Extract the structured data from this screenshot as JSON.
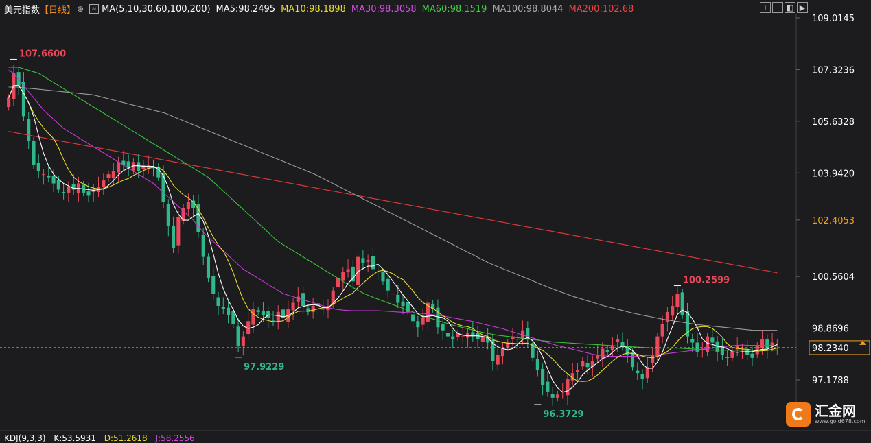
{
  "header": {
    "symbol": "美元指数",
    "period": "【日线】",
    "ma_def": "MA(5,10,30,60,100,200)",
    "ma5": "MA5:98.2495",
    "ma10": "MA10:98.1898",
    "ma30": "MA30:98.3058",
    "ma60": "MA60:98.1519",
    "ma100": "MA100:98.8044",
    "ma200": "MA200:102.68"
  },
  "toolbar": [
    "+",
    "−",
    "◧",
    "▶"
  ],
  "kdj": {
    "label": "KDJ(9,3,3)",
    "k": "K:53.5931",
    "d": "D:51.2618",
    "j": "J:58.2556"
  },
  "logo": {
    "name": "汇金网",
    "url": "www.gold678.com"
  },
  "colors": {
    "up": "#e8485a",
    "down": "#2fb98b",
    "ma5": "#ffffff",
    "ma10": "#e7dc32",
    "ma30": "#c43bd1",
    "ma60": "#37c43a",
    "ma100": "#9c9c9c",
    "ma200": "#e23a3a",
    "axis_text": "#ffffff",
    "current": "#f0a020"
  },
  "chart_data": {
    "type": "candlestick",
    "y_ticks": [
      "109.0145",
      "107.3236",
      "105.6328",
      "103.9420",
      "102.4053",
      "100.5604",
      "98.8696",
      "97.1788"
    ],
    "y_range": [
      96.0,
      109.6
    ],
    "current_price": "98.2340",
    "highlight_price": "102.4053",
    "annotations": [
      {
        "label": "107.6600",
        "value": 107.66,
        "index": 1
      },
      {
        "label": "97.9229",
        "value": 97.9229,
        "index": 46
      },
      {
        "label": "96.3729",
        "value": 96.3729,
        "index": 106
      },
      {
        "label": "100.2599",
        "value": 100.2599,
        "index": 134
      }
    ],
    "closes": [
      106.4,
      107.2,
      106.8,
      105.8,
      105.0,
      104.2,
      104.0,
      103.9,
      103.8,
      103.6,
      103.4,
      103.3,
      103.5,
      103.4,
      103.6,
      103.3,
      103.2,
      103.4,
      103.5,
      103.7,
      103.9,
      104.0,
      104.3,
      104.2,
      104.1,
      104.3,
      104.0,
      104.2,
      104.2,
      104.1,
      103.8,
      103.0,
      102.2,
      101.5,
      102.5,
      102.8,
      103.0,
      102.8,
      102.0,
      101.2,
      100.5,
      100.0,
      99.6,
      99.5,
      99.3,
      99.0,
      98.3,
      98.6,
      99.1,
      99.5,
      99.4,
      99.3,
      99.2,
      99.1,
      99.4,
      99.2,
      99.5,
      99.7,
      99.9,
      99.6,
      99.4,
      99.6,
      99.6,
      99.5,
      99.6,
      100.1,
      100.5,
      100.7,
      100.8,
      100.4,
      101.2,
      101.0,
      101.1,
      100.8,
      100.7,
      100.4,
      100.1,
      100.0,
      99.7,
      99.6,
      99.4,
      99.1,
      98.9,
      99.2,
      99.7,
      99.5,
      98.9,
      98.8,
      98.6,
      98.5,
      98.7,
      98.6,
      98.7,
      98.6,
      98.5,
      98.6,
      98.4,
      97.8,
      98.0,
      98.2,
      98.4,
      98.6,
      98.5,
      98.8,
      98.5,
      97.9,
      97.5,
      97.0,
      96.8,
      96.6,
      96.7,
      96.8,
      97.2,
      97.4,
      97.5,
      97.8,
      97.6,
      97.8,
      98.0,
      98.2,
      98.1,
      98.3,
      98.5,
      98.3,
      98.0,
      97.6,
      97.4,
      97.2,
      97.6,
      98.0,
      98.6,
      99.0,
      99.4,
      99.6,
      100.0,
      99.3,
      98.6,
      98.4,
      98.1,
      98.2,
      98.6,
      98.4,
      98.1,
      98.0,
      97.9,
      98.1,
      98.3,
      98.2,
      98.0,
      97.9,
      98.3,
      98.5,
      98.2,
      98.4,
      98.3
    ],
    "ma30": [
      107.3,
      107.2,
      107.0,
      106.8,
      106.6,
      106.4,
      106.2,
      106.0,
      105.85,
      105.7,
      105.55,
      105.4,
      105.3,
      105.2,
      105.1,
      105.0,
      104.9,
      104.8,
      104.7,
      104.6,
      104.5,
      104.4,
      104.3,
      104.2,
      104.1,
      104.0,
      103.9,
      103.8,
      103.7,
      103.6,
      103.45,
      103.3,
      103.15,
      103.0,
      102.85,
      102.7,
      102.55,
      102.4,
      102.2,
      102.0,
      101.85,
      101.7,
      101.55,
      101.4,
      101.25,
      101.1,
      100.95,
      100.8,
      100.7,
      100.6,
      100.5,
      100.4,
      100.3,
      100.2,
      100.1,
      100.0,
      99.95,
      99.9,
      99.85,
      99.8,
      99.75,
      99.7,
      99.65,
      99.6,
      99.55,
      99.5,
      99.48,
      99.46,
      99.45,
      99.44,
      99.44,
      99.44,
      99.44,
      99.44,
      99.44,
      99.43,
      99.42,
      99.41,
      99.4,
      99.39,
      99.38,
      99.37,
      99.36,
      99.35,
      99.33,
      99.31,
      99.29,
      99.27,
      99.24,
      99.21,
      99.18,
      99.15,
      99.12,
      99.09,
      99.05,
      99.01,
      98.97,
      98.93,
      98.89,
      98.85,
      98.8,
      98.75,
      98.7,
      98.65,
      98.6,
      98.55,
      98.5,
      98.45,
      98.4,
      98.35,
      98.3,
      98.26,
      98.22,
      98.18,
      98.14,
      98.1,
      98.06,
      98.02,
      97.99,
      97.97,
      97.96,
      97.95,
      97.95,
      97.95,
      97.95,
      97.95,
      97.96,
      97.97,
      97.98,
      97.99,
      98.0,
      98.02,
      98.04,
      98.06,
      98.08,
      98.1,
      98.12,
      98.14,
      98.16,
      98.18,
      98.2,
      98.22,
      98.24,
      98.26,
      98.28,
      98.3,
      98.31,
      98.32,
      98.31,
      98.31,
      98.31,
      98.31,
      98.31,
      98.31,
      98.31
    ],
    "ma60": [
      107.4,
      107.4,
      107.4,
      107.35,
      107.3,
      107.25,
      107.2,
      107.1,
      107.0,
      106.9,
      106.8,
      106.7,
      106.6,
      106.5,
      106.4,
      106.3,
      106.2,
      106.1,
      106.0,
      105.9,
      105.8,
      105.7,
      105.6,
      105.5,
      105.4,
      105.3,
      105.2,
      105.1,
      105.0,
      104.9,
      104.8,
      104.7,
      104.6,
      104.5,
      104.4,
      104.3,
      104.2,
      104.1,
      104.0,
      103.9,
      103.8,
      103.65,
      103.5,
      103.35,
      103.2,
      103.05,
      102.9,
      102.75,
      102.6,
      102.45,
      102.3,
      102.15,
      102.0,
      101.85,
      101.7,
      101.6,
      101.5,
      101.4,
      101.3,
      101.2,
      101.1,
      101.0,
      100.9,
      100.8,
      100.7,
      100.6,
      100.5,
      100.4,
      100.3,
      100.2,
      100.1,
      100.02,
      99.95,
      99.88,
      99.82,
      99.76,
      99.7,
      99.64,
      99.58,
      99.52,
      99.46,
      99.4,
      99.34,
      99.28,
      99.22,
      99.17,
      99.12,
      99.07,
      99.02,
      98.97,
      98.93,
      98.89,
      98.85,
      98.81,
      98.77,
      98.73,
      98.7,
      98.67,
      98.64,
      98.62,
      98.6,
      98.58,
      98.56,
      98.54,
      98.52,
      98.5,
      98.48,
      98.46,
      98.44,
      98.42,
      98.41,
      98.4,
      98.39,
      98.38,
      98.37,
      98.36,
      98.35,
      98.34,
      98.33,
      98.32,
      98.31,
      98.3,
      98.29,
      98.28,
      98.27,
      98.26,
      98.25,
      98.24,
      98.23,
      98.22,
      98.22,
      98.22,
      98.22,
      98.22,
      98.22,
      98.21,
      98.2,
      98.19,
      98.18,
      98.17,
      98.16,
      98.15,
      98.15,
      98.15,
      98.15,
      98.15,
      98.15,
      98.15,
      98.15,
      98.15,
      98.15,
      98.15,
      98.15,
      98.15,
      98.15
    ],
    "ma100": [
      106.75,
      106.75,
      106.75,
      106.72,
      106.7,
      106.68,
      106.66,
      106.64,
      106.62,
      106.6,
      106.58,
      106.56,
      106.54,
      106.52,
      106.5,
      106.45,
      106.4,
      106.35,
      106.3,
      106.25,
      106.2,
      106.15,
      106.1,
      106.05,
      106.0,
      105.95,
      105.9,
      105.82,
      105.74,
      105.66,
      105.58,
      105.5,
      105.42,
      105.34,
      105.26,
      105.18,
      105.1,
      105.02,
      104.94,
      104.86,
      104.78,
      104.7,
      104.62,
      104.54,
      104.46,
      104.38,
      104.3,
      104.22,
      104.14,
      104.06,
      103.98,
      103.9,
      103.8,
      103.7,
      103.6,
      103.5,
      103.4,
      103.3,
      103.2,
      103.1,
      103.0,
      102.9,
      102.8,
      102.7,
      102.6,
      102.5,
      102.4,
      102.3,
      102.2,
      102.1,
      102.0,
      101.9,
      101.8,
      101.7,
      101.6,
      101.5,
      101.4,
      101.3,
      101.2,
      101.1,
      101.0,
      100.92,
      100.84,
      100.76,
      100.68,
      100.6,
      100.52,
      100.44,
      100.36,
      100.28,
      100.2,
      100.12,
      100.05,
      99.98,
      99.91,
      99.85,
      99.79,
      99.73,
      99.67,
      99.61,
      99.56,
      99.51,
      99.46,
      99.41,
      99.36,
      99.32,
      99.28,
      99.24,
      99.2,
      99.16,
      99.13,
      99.1,
      99.07,
      99.04,
      99.01,
      98.98,
      98.96,
      98.94,
      98.92,
      98.9,
      98.88,
      98.86,
      98.84,
      98.82,
      98.8,
      98.8,
      98.8,
      98.8,
      98.8
    ],
    "ma200": [
      105.3,
      105.27,
      105.24,
      105.21,
      105.18,
      105.15,
      105.12,
      105.09,
      105.06,
      105.03,
      105.0,
      104.97,
      104.94,
      104.91,
      104.88,
      104.85,
      104.82,
      104.79,
      104.76,
      104.73,
      104.7,
      104.67,
      104.64,
      104.61,
      104.58,
      104.55,
      104.52,
      104.49,
      104.46,
      104.43,
      104.4,
      104.37,
      104.34,
      104.31,
      104.28,
      104.25,
      104.22,
      104.19,
      104.16,
      104.13,
      104.1,
      104.07,
      104.04,
      104.01,
      103.98,
      103.95,
      103.92,
      103.89,
      103.86,
      103.83,
      103.8,
      103.77,
      103.74,
      103.71,
      103.68,
      103.65,
      103.62,
      103.59,
      103.56,
      103.53,
      103.5,
      103.47,
      103.44,
      103.41,
      103.38,
      103.35,
      103.32,
      103.29,
      103.26,
      103.23,
      103.2,
      103.17,
      103.14,
      103.11,
      103.08,
      103.05,
      103.02,
      102.99,
      102.96,
      102.93,
      102.9,
      102.87,
      102.84,
      102.81,
      102.78,
      102.75,
      102.72,
      102.69,
      102.66,
      102.63,
      102.6,
      102.57,
      102.54,
      102.51,
      102.48,
      102.45,
      102.42,
      102.39,
      102.36,
      102.33,
      102.3,
      102.27,
      102.24,
      102.21,
      102.18,
      102.15,
      102.12,
      102.09,
      102.06,
      102.03,
      102.0,
      101.97,
      101.94,
      101.91,
      101.88,
      101.85,
      101.82,
      101.79,
      101.76,
      101.73,
      101.7,
      101.67,
      101.64,
      101.61,
      101.58,
      101.55,
      101.52,
      101.49,
      101.46,
      101.43,
      101.4,
      101.37,
      101.34,
      101.31,
      101.28,
      101.25,
      101.22,
      101.19,
      101.16,
      101.13,
      101.1,
      101.07,
      101.04,
      101.01,
      100.98,
      100.95,
      100.92,
      100.89,
      100.86,
      100.83,
      100.8,
      100.77,
      100.74,
      100.71,
      100.68,
      102.68
    ]
  }
}
